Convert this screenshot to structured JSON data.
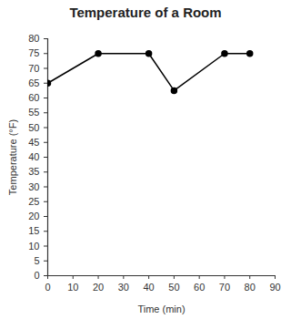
{
  "chart_data": {
    "type": "line",
    "title": "Temperature of a Room",
    "x_label": "Time (min)",
    "y_label": "Temperature (°F)",
    "x": [
      0,
      20,
      40,
      50,
      70,
      80
    ],
    "values": [
      65,
      75,
      75,
      62.5,
      75,
      75
    ],
    "color": "#000000",
    "marker": "circle",
    "line_style": "solid",
    "xlim": [
      0,
      90
    ],
    "xticks": [
      0,
      10,
      20,
      30,
      40,
      50,
      60,
      70,
      80,
      90
    ],
    "ylim": [
      0,
      80
    ],
    "yticks": [
      0,
      5,
      10,
      15,
      20,
      25,
      30,
      35,
      40,
      45,
      50,
      55,
      60,
      65,
      70,
      75,
      80
    ],
    "grid": false
  }
}
